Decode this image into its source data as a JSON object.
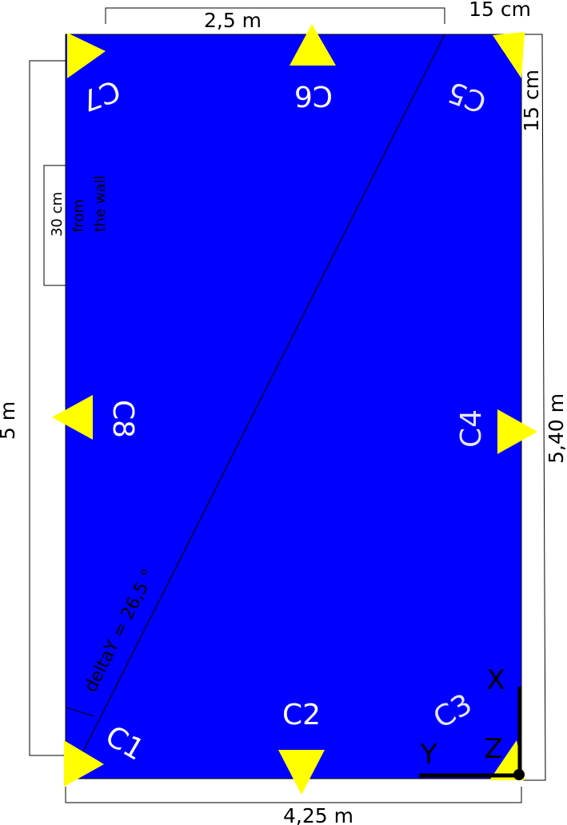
{
  "colors": {
    "room_fill": "#0000ff",
    "camera_marker": "#ffff00",
    "camera_label": "#ffffff",
    "lines": "#000000"
  },
  "dimensions": {
    "top_width": "2,5 m",
    "corner_offset_top": "15 cm",
    "corner_offset_side": "15 cm",
    "left_height": "5 m",
    "right_height": "5,40 m",
    "bottom_width": "4,25 m",
    "wall_offset": "30 cm",
    "wall_offset_note_line1": "from",
    "wall_offset_note_line2": "the wall"
  },
  "cameras": {
    "c1": "C1",
    "c2": "C2",
    "c3": "C3",
    "c4": "C4",
    "c5": "C5",
    "c6": "C6",
    "c7": "C7",
    "c8": "C8"
  },
  "diagonal_label": "deltaY = 26,5 °",
  "axes": {
    "x": "X",
    "y": "Y",
    "z": "Z"
  }
}
